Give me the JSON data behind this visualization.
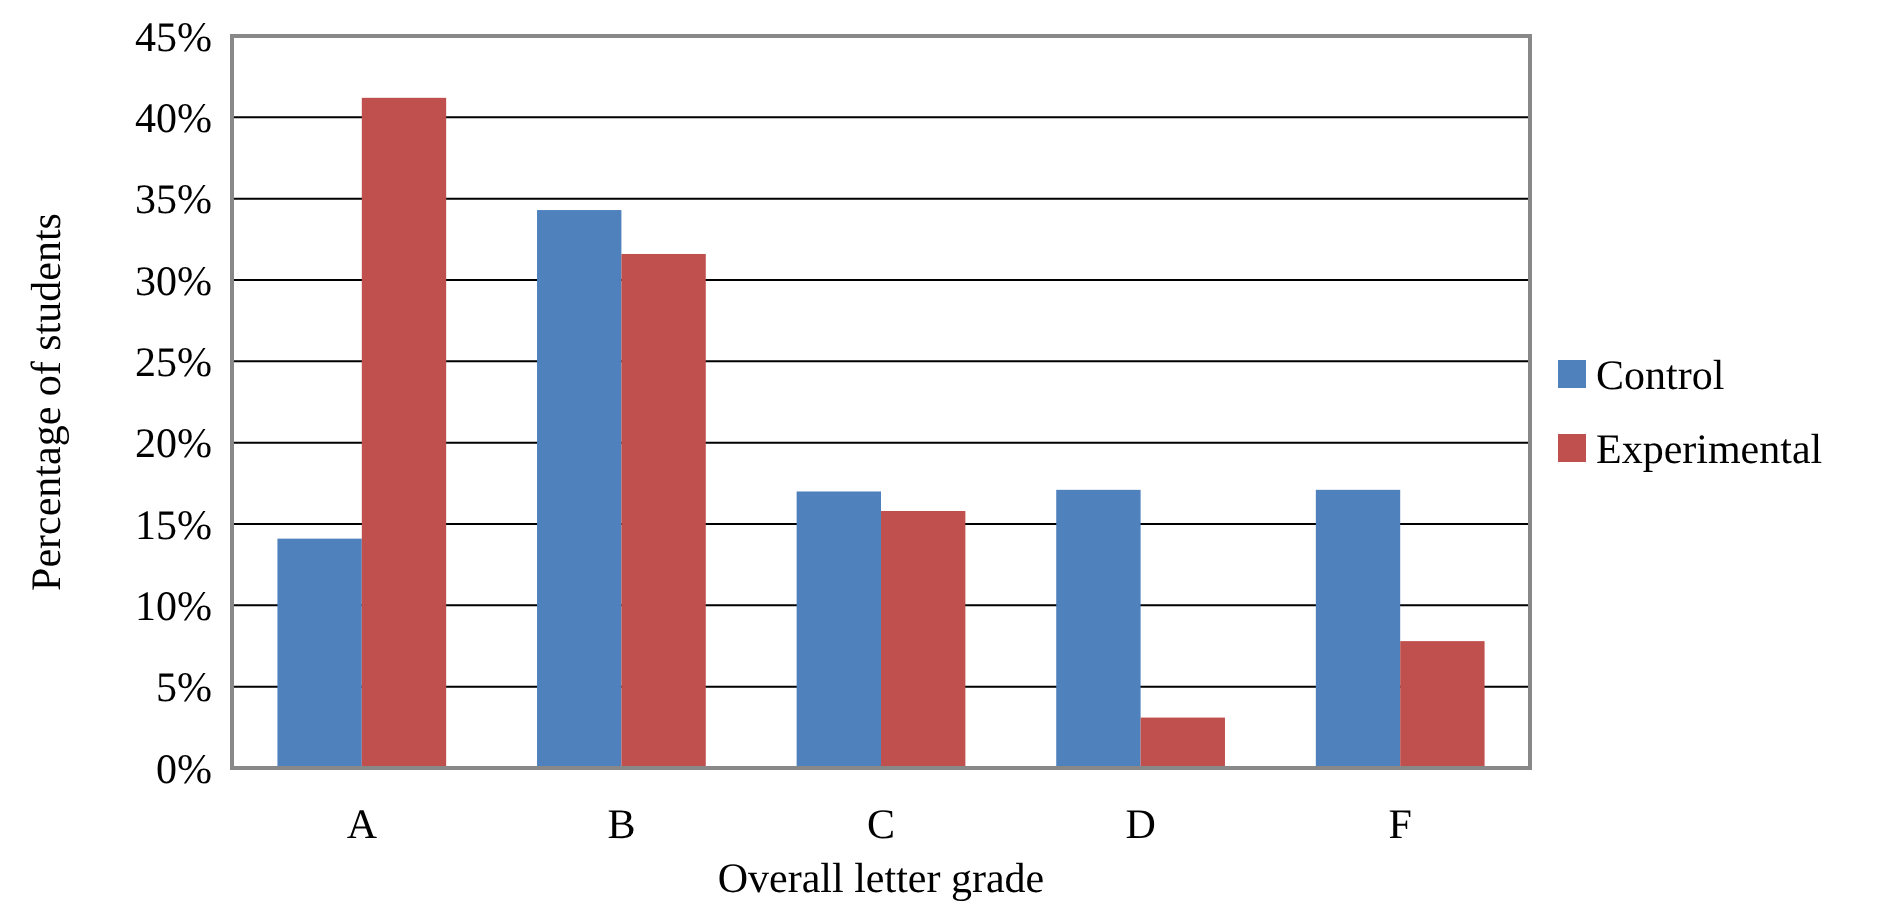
{
  "chart_data": {
    "type": "bar",
    "xlabel": "Overall letter grade",
    "ylabel": "Percentage of students",
    "categories": [
      "A",
      "B",
      "C",
      "D",
      "F"
    ],
    "series": [
      {
        "name": "Control",
        "color": "#4f81bd",
        "values": [
          14.1,
          34.3,
          17.0,
          17.1,
          17.1
        ]
      },
      {
        "name": "Experimental",
        "color": "#c0504d",
        "values": [
          41.2,
          31.6,
          15.8,
          3.1,
          7.8
        ]
      }
    ],
    "ylim": [
      0,
      45
    ],
    "yticks": [
      {
        "value": 0,
        "label": "0%"
      },
      {
        "value": 5,
        "label": "5%"
      },
      {
        "value": 10,
        "label": "10%"
      },
      {
        "value": 15,
        "label": "15%"
      },
      {
        "value": 20,
        "label": "20%"
      },
      {
        "value": 25,
        "label": "25%"
      },
      {
        "value": 30,
        "label": "30%"
      },
      {
        "value": 35,
        "label": "35%"
      },
      {
        "value": 40,
        "label": "40%"
      },
      {
        "value": 45,
        "label": "45%"
      }
    ],
    "grid": "y",
    "legend": "right"
  }
}
